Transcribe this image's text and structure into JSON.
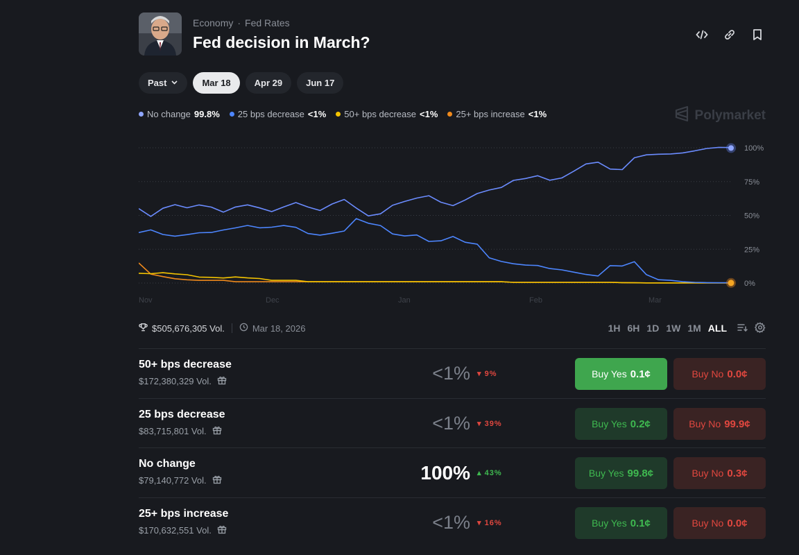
{
  "header": {
    "category": "Economy",
    "subcategory": "Fed Rates",
    "title": "Fed decision in March?",
    "icons": [
      "code-icon",
      "link-icon",
      "bookmark-icon"
    ]
  },
  "tabs": [
    {
      "label": "Past",
      "active": false,
      "dropdown": true
    },
    {
      "label": "Mar 18",
      "active": true
    },
    {
      "label": "Apr 29",
      "active": false
    },
    {
      "label": "Jun 17",
      "active": false
    }
  ],
  "legend": [
    {
      "name": "No change",
      "value": "99.8%",
      "color": "#7b9cff"
    },
    {
      "name": "25 bps decrease",
      "value": "<1%",
      "color": "#4d86ff"
    },
    {
      "name": "50+ bps decrease",
      "value": "<1%",
      "color": "#f5c400"
    },
    {
      "name": "25+ bps increase",
      "value": "<1%",
      "color": "#f08a1c"
    }
  ],
  "brand": "Polymarket",
  "chart_data": {
    "type": "line",
    "x_ticks": [
      "Nov",
      "Dec",
      "Jan",
      "Feb",
      "Mar"
    ],
    "y_ticks": [
      "100%",
      "75%",
      "50%",
      "25%",
      "0%"
    ],
    "ylim": [
      0,
      100
    ],
    "grid": true,
    "series": [
      {
        "name": "No change",
        "color": "#6b8cff",
        "values": [
          55,
          50,
          56,
          58,
          55,
          57,
          56,
          53,
          57,
          58,
          55,
          52,
          56,
          60,
          57,
          54,
          58,
          61,
          55,
          50,
          52,
          58,
          60,
          62,
          64,
          60,
          58,
          62,
          66,
          68,
          70,
          76,
          78,
          80,
          76,
          77,
          82,
          88,
          90,
          85,
          84,
          92,
          94,
          95,
          96,
          97,
          98,
          99,
          99.5,
          99.8
        ]
      },
      {
        "name": "25 bps decrease",
        "color": "#4d86ff",
        "values": [
          38,
          40,
          36,
          34,
          35,
          37,
          38,
          40,
          41,
          42,
          40,
          41,
          43,
          42,
          37,
          35,
          36,
          38,
          48,
          45,
          43,
          36,
          34,
          35,
          31,
          32,
          35,
          30,
          28,
          18,
          16,
          15,
          14,
          13,
          10,
          9,
          8,
          7,
          6,
          13,
          12,
          15,
          6,
          3,
          2,
          1,
          0.5,
          0.3,
          0.2,
          0.2
        ]
      },
      {
        "name": "50+ bps decrease",
        "color": "#f5c400",
        "values": [
          8,
          7,
          7,
          6,
          6,
          5,
          5,
          4,
          4,
          3,
          3,
          2,
          2,
          2,
          1,
          1,
          1,
          1,
          1,
          1,
          1,
          1,
          1,
          1,
          1,
          1,
          1,
          1,
          1,
          1,
          1,
          0.5,
          0.5,
          0.5,
          0.5,
          0.5,
          0.5,
          0.5,
          0.5,
          0.5,
          0.3,
          0.2,
          0.1,
          0.1,
          0.1,
          0.1,
          0.1,
          0.1,
          0.1,
          0.1
        ]
      },
      {
        "name": "25+ bps increase",
        "color": "#f08a1c",
        "values": [
          15,
          6,
          4,
          3,
          3,
          2,
          2,
          2,
          1,
          1,
          1,
          1,
          1,
          1,
          1,
          1,
          1,
          1,
          1,
          1,
          1,
          1,
          1,
          1,
          1,
          1,
          1,
          1,
          1,
          1,
          1,
          0.5,
          0.5,
          0.5,
          0.5,
          0.5,
          0.5,
          0.5,
          0.5,
          0.5,
          0.3,
          0.2,
          0.1,
          0.1,
          0.1,
          0.1,
          0.1,
          0.1,
          0.1,
          0.1
        ]
      }
    ]
  },
  "stats": {
    "volume": "$505,676,305 Vol.",
    "date": "Mar 18, 2026"
  },
  "ranges": [
    {
      "label": "1H",
      "selected": false
    },
    {
      "label": "6H",
      "selected": false
    },
    {
      "label": "1D",
      "selected": false
    },
    {
      "label": "1W",
      "selected": false
    },
    {
      "label": "1M",
      "selected": false
    },
    {
      "label": "ALL",
      "selected": true
    }
  ],
  "outcomes": [
    {
      "name": "50+ bps decrease",
      "volume": "$172,380,329 Vol.",
      "pct": "<1%",
      "change": "9%",
      "direction": "down",
      "yes_label": "Buy Yes",
      "yes_price": "0.1¢",
      "no_label": "Buy No",
      "no_price": "0.0¢",
      "highlight": true
    },
    {
      "name": "25 bps decrease",
      "volume": "$83,715,801 Vol.",
      "pct": "<1%",
      "change": "39%",
      "direction": "down",
      "yes_label": "Buy Yes",
      "yes_price": "0.2¢",
      "no_label": "Buy No",
      "no_price": "99.9¢",
      "highlight": false
    },
    {
      "name": "No change",
      "volume": "$79,140,772 Vol.",
      "pct": "100%",
      "change": "43%",
      "direction": "up",
      "yes_label": "Buy Yes",
      "yes_price": "99.8¢",
      "no_label": "Buy No",
      "no_price": "0.3¢",
      "highlight": false
    },
    {
      "name": "25+ bps increase",
      "volume": "$170,632,551 Vol.",
      "pct": "<1%",
      "change": "16%",
      "direction": "down",
      "yes_label": "Buy Yes",
      "yes_price": "0.1¢",
      "no_label": "Buy No",
      "no_price": "0.0¢",
      "highlight": false
    }
  ]
}
